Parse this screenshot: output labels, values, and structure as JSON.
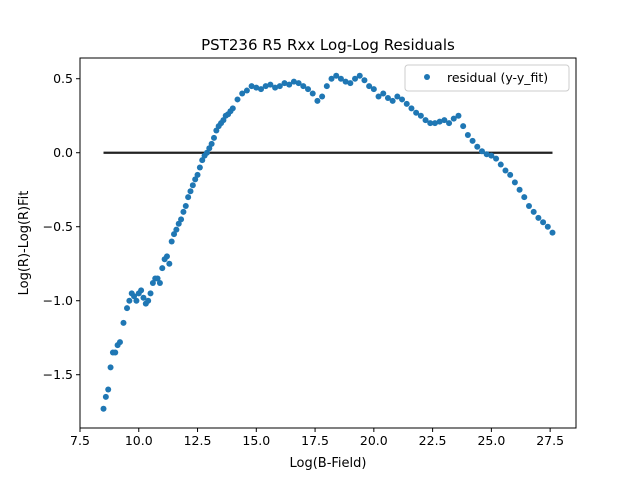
{
  "chart_data": {
    "type": "scatter",
    "title": "PST236 R5 Rxx Log-Log Residuals",
    "xlabel": "Log(B-Field)",
    "ylabel": "Log(R)-Log(R)Fit",
    "xlim": [
      7.5,
      28.6
    ],
    "ylim": [
      -1.86,
      0.64
    ],
    "xticks": [
      7.5,
      10.0,
      12.5,
      15.0,
      17.5,
      20.0,
      22.5,
      25.0,
      27.5
    ],
    "xtick_labels": [
      "7.5",
      "10.0",
      "12.5",
      "15.0",
      "17.5",
      "20.0",
      "22.5",
      "25.0",
      "27.5"
    ],
    "yticks": [
      -1.5,
      -1.0,
      -0.5,
      0.0,
      0.5
    ],
    "ytick_labels": [
      "−1.5",
      "−1.0",
      "−0.5",
      "0.0",
      "0.5"
    ],
    "grid": false,
    "legend": {
      "position": "top-right",
      "entries": [
        "residual (y-y_fit)"
      ]
    },
    "colors": {
      "series": "#1f77b4",
      "zero_line": "#222222"
    },
    "reference_line": {
      "y": 0.0,
      "x_start": 8.5,
      "x_end": 27.6
    },
    "series": [
      {
        "name": "residual (y-y_fit)",
        "x": [
          8.5,
          8.6,
          8.7,
          8.8,
          8.9,
          9.0,
          9.1,
          9.2,
          9.35,
          9.5,
          9.6,
          9.7,
          9.8,
          9.9,
          10.0,
          10.1,
          10.2,
          10.3,
          10.4,
          10.5,
          10.6,
          10.7,
          10.8,
          10.9,
          11.0,
          11.1,
          11.2,
          11.3,
          11.4,
          11.5,
          11.6,
          11.7,
          11.8,
          11.9,
          12.0,
          12.1,
          12.2,
          12.3,
          12.4,
          12.5,
          12.6,
          12.7,
          12.8,
          12.9,
          13.0,
          13.1,
          13.2,
          13.3,
          13.4,
          13.5,
          13.6,
          13.7,
          13.8,
          13.9,
          14.0,
          14.2,
          14.4,
          14.6,
          14.8,
          15.0,
          15.2,
          15.4,
          15.6,
          15.8,
          16.0,
          16.2,
          16.4,
          16.6,
          16.8,
          17.0,
          17.2,
          17.4,
          17.6,
          17.8,
          18.0,
          18.2,
          18.4,
          18.6,
          18.8,
          19.0,
          19.2,
          19.4,
          19.6,
          19.8,
          20.0,
          20.2,
          20.4,
          20.6,
          20.8,
          21.0,
          21.2,
          21.4,
          21.6,
          21.8,
          22.0,
          22.2,
          22.4,
          22.6,
          22.8,
          23.0,
          23.2,
          23.4,
          23.6,
          23.8,
          24.0,
          24.2,
          24.4,
          24.6,
          24.8,
          25.0,
          25.2,
          25.4,
          25.6,
          25.8,
          26.0,
          26.2,
          26.4,
          26.6,
          26.8,
          27.0,
          27.2,
          27.4,
          27.6
        ],
        "y": [
          -1.73,
          -1.65,
          -1.6,
          -1.45,
          -1.35,
          -1.35,
          -1.3,
          -1.28,
          -1.15,
          -1.05,
          -1.0,
          -0.95,
          -0.97,
          -1.0,
          -0.95,
          -0.93,
          -0.98,
          -1.02,
          -1.0,
          -0.95,
          -0.88,
          -0.85,
          -0.85,
          -0.88,
          -0.78,
          -0.72,
          -0.7,
          -0.75,
          -0.6,
          -0.55,
          -0.52,
          -0.48,
          -0.45,
          -0.4,
          -0.36,
          -0.3,
          -0.26,
          -0.22,
          -0.18,
          -0.15,
          -0.1,
          -0.05,
          -0.02,
          0.0,
          0.03,
          0.06,
          0.1,
          0.15,
          0.18,
          0.2,
          0.22,
          0.25,
          0.26,
          0.28,
          0.3,
          0.36,
          0.4,
          0.42,
          0.45,
          0.44,
          0.43,
          0.45,
          0.46,
          0.44,
          0.45,
          0.47,
          0.46,
          0.48,
          0.47,
          0.45,
          0.43,
          0.4,
          0.35,
          0.38,
          0.45,
          0.5,
          0.52,
          0.5,
          0.48,
          0.47,
          0.5,
          0.52,
          0.49,
          0.45,
          0.43,
          0.38,
          0.4,
          0.37,
          0.35,
          0.38,
          0.36,
          0.33,
          0.3,
          0.27,
          0.25,
          0.22,
          0.2,
          0.2,
          0.21,
          0.22,
          0.2,
          0.23,
          0.25,
          0.18,
          0.12,
          0.08,
          0.04,
          0.01,
          -0.01,
          -0.02,
          -0.04,
          -0.08,
          -0.12,
          -0.15,
          -0.2,
          -0.25,
          -0.3,
          -0.36,
          -0.4,
          -0.44,
          -0.47,
          -0.5,
          -0.54
        ]
      }
    ]
  }
}
